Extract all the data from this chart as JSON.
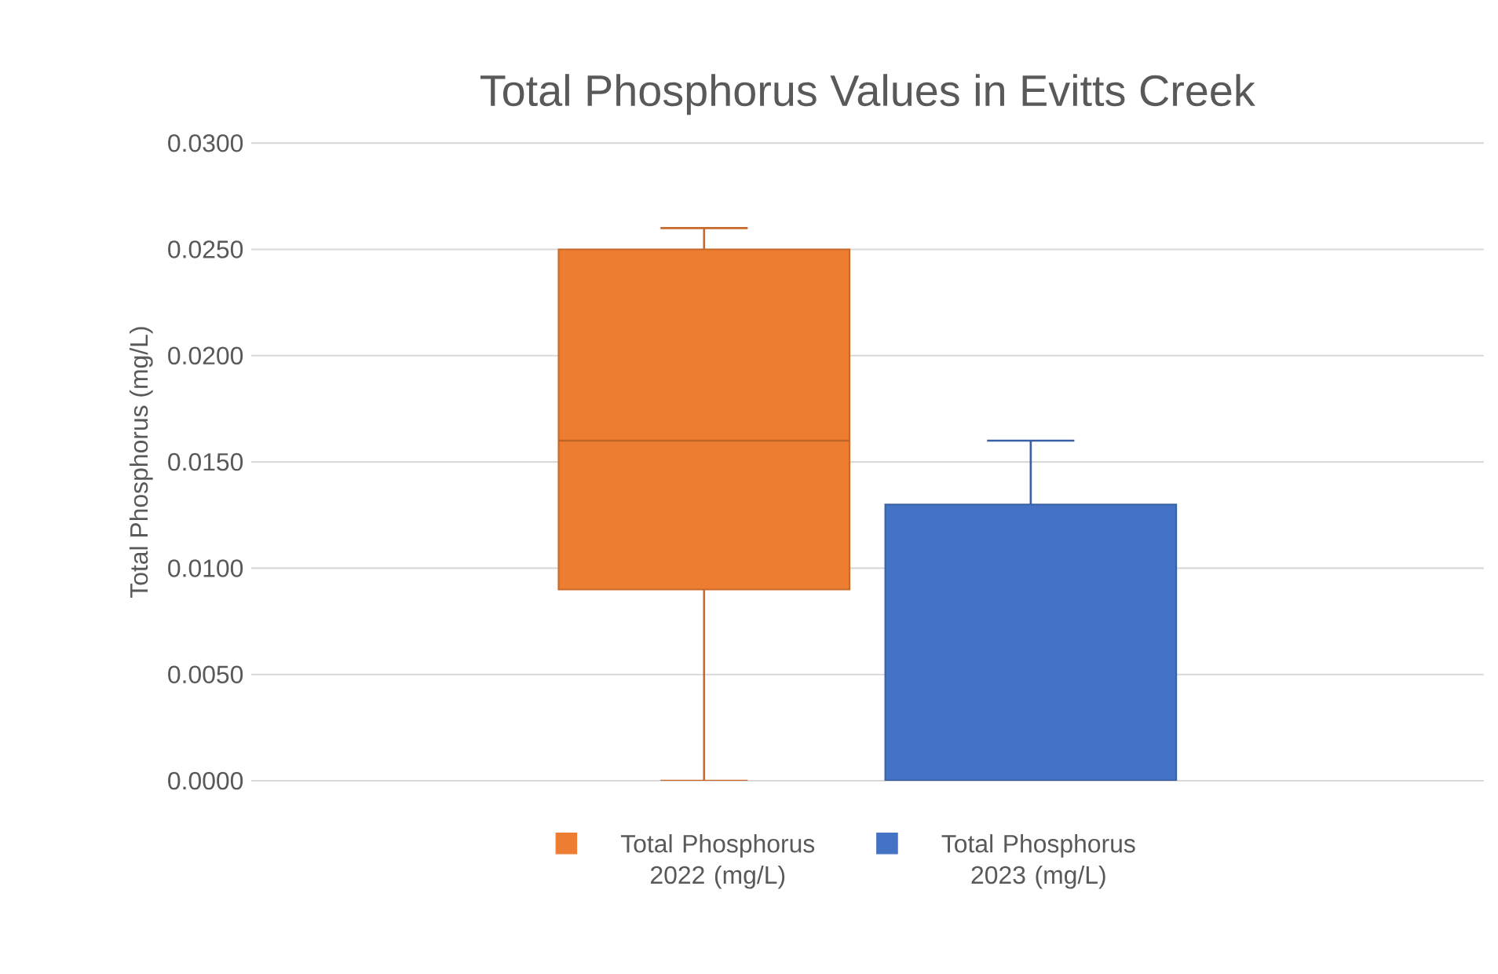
{
  "chart_data": {
    "type": "box",
    "title": "Total Phosphorus Values in Evitts Creek",
    "ylabel": "Total Phosphorus (mg/L)",
    "categories": [
      null
    ],
    "series": [
      {
        "name": "Total Phosphorus 2022 (mg/L)",
        "color": "#ed7d31",
        "boxes": [
          {
            "low": 0.0,
            "q1": 0.009,
            "median": 0.016,
            "q3": 0.025,
            "high": 0.026
          }
        ]
      },
      {
        "name": "Total Phosphorus 2023 (mg/L)",
        "color": "#4472c4",
        "boxes": [
          {
            "low": 0.0,
            "q1": 0.0,
            "median": 0.0,
            "q3": 0.013,
            "high": 0.016
          }
        ]
      }
    ],
    "ylim": [
      0,
      0.03
    ],
    "yticks": [
      {
        "value": 0,
        "label": "0.0000"
      },
      {
        "value": 0.005,
        "label": "0.0050"
      },
      {
        "value": 0.01,
        "label": "0.0100"
      },
      {
        "value": 0.015,
        "label": "0.0150"
      },
      {
        "value": 0.02,
        "label": "0.0200"
      },
      {
        "value": 0.025,
        "label": "0.0250"
      },
      {
        "value": 0.03,
        "label": "0.0300"
      }
    ],
    "grid": "y",
    "legend": "bottom",
    "tick_labels": "y"
  }
}
